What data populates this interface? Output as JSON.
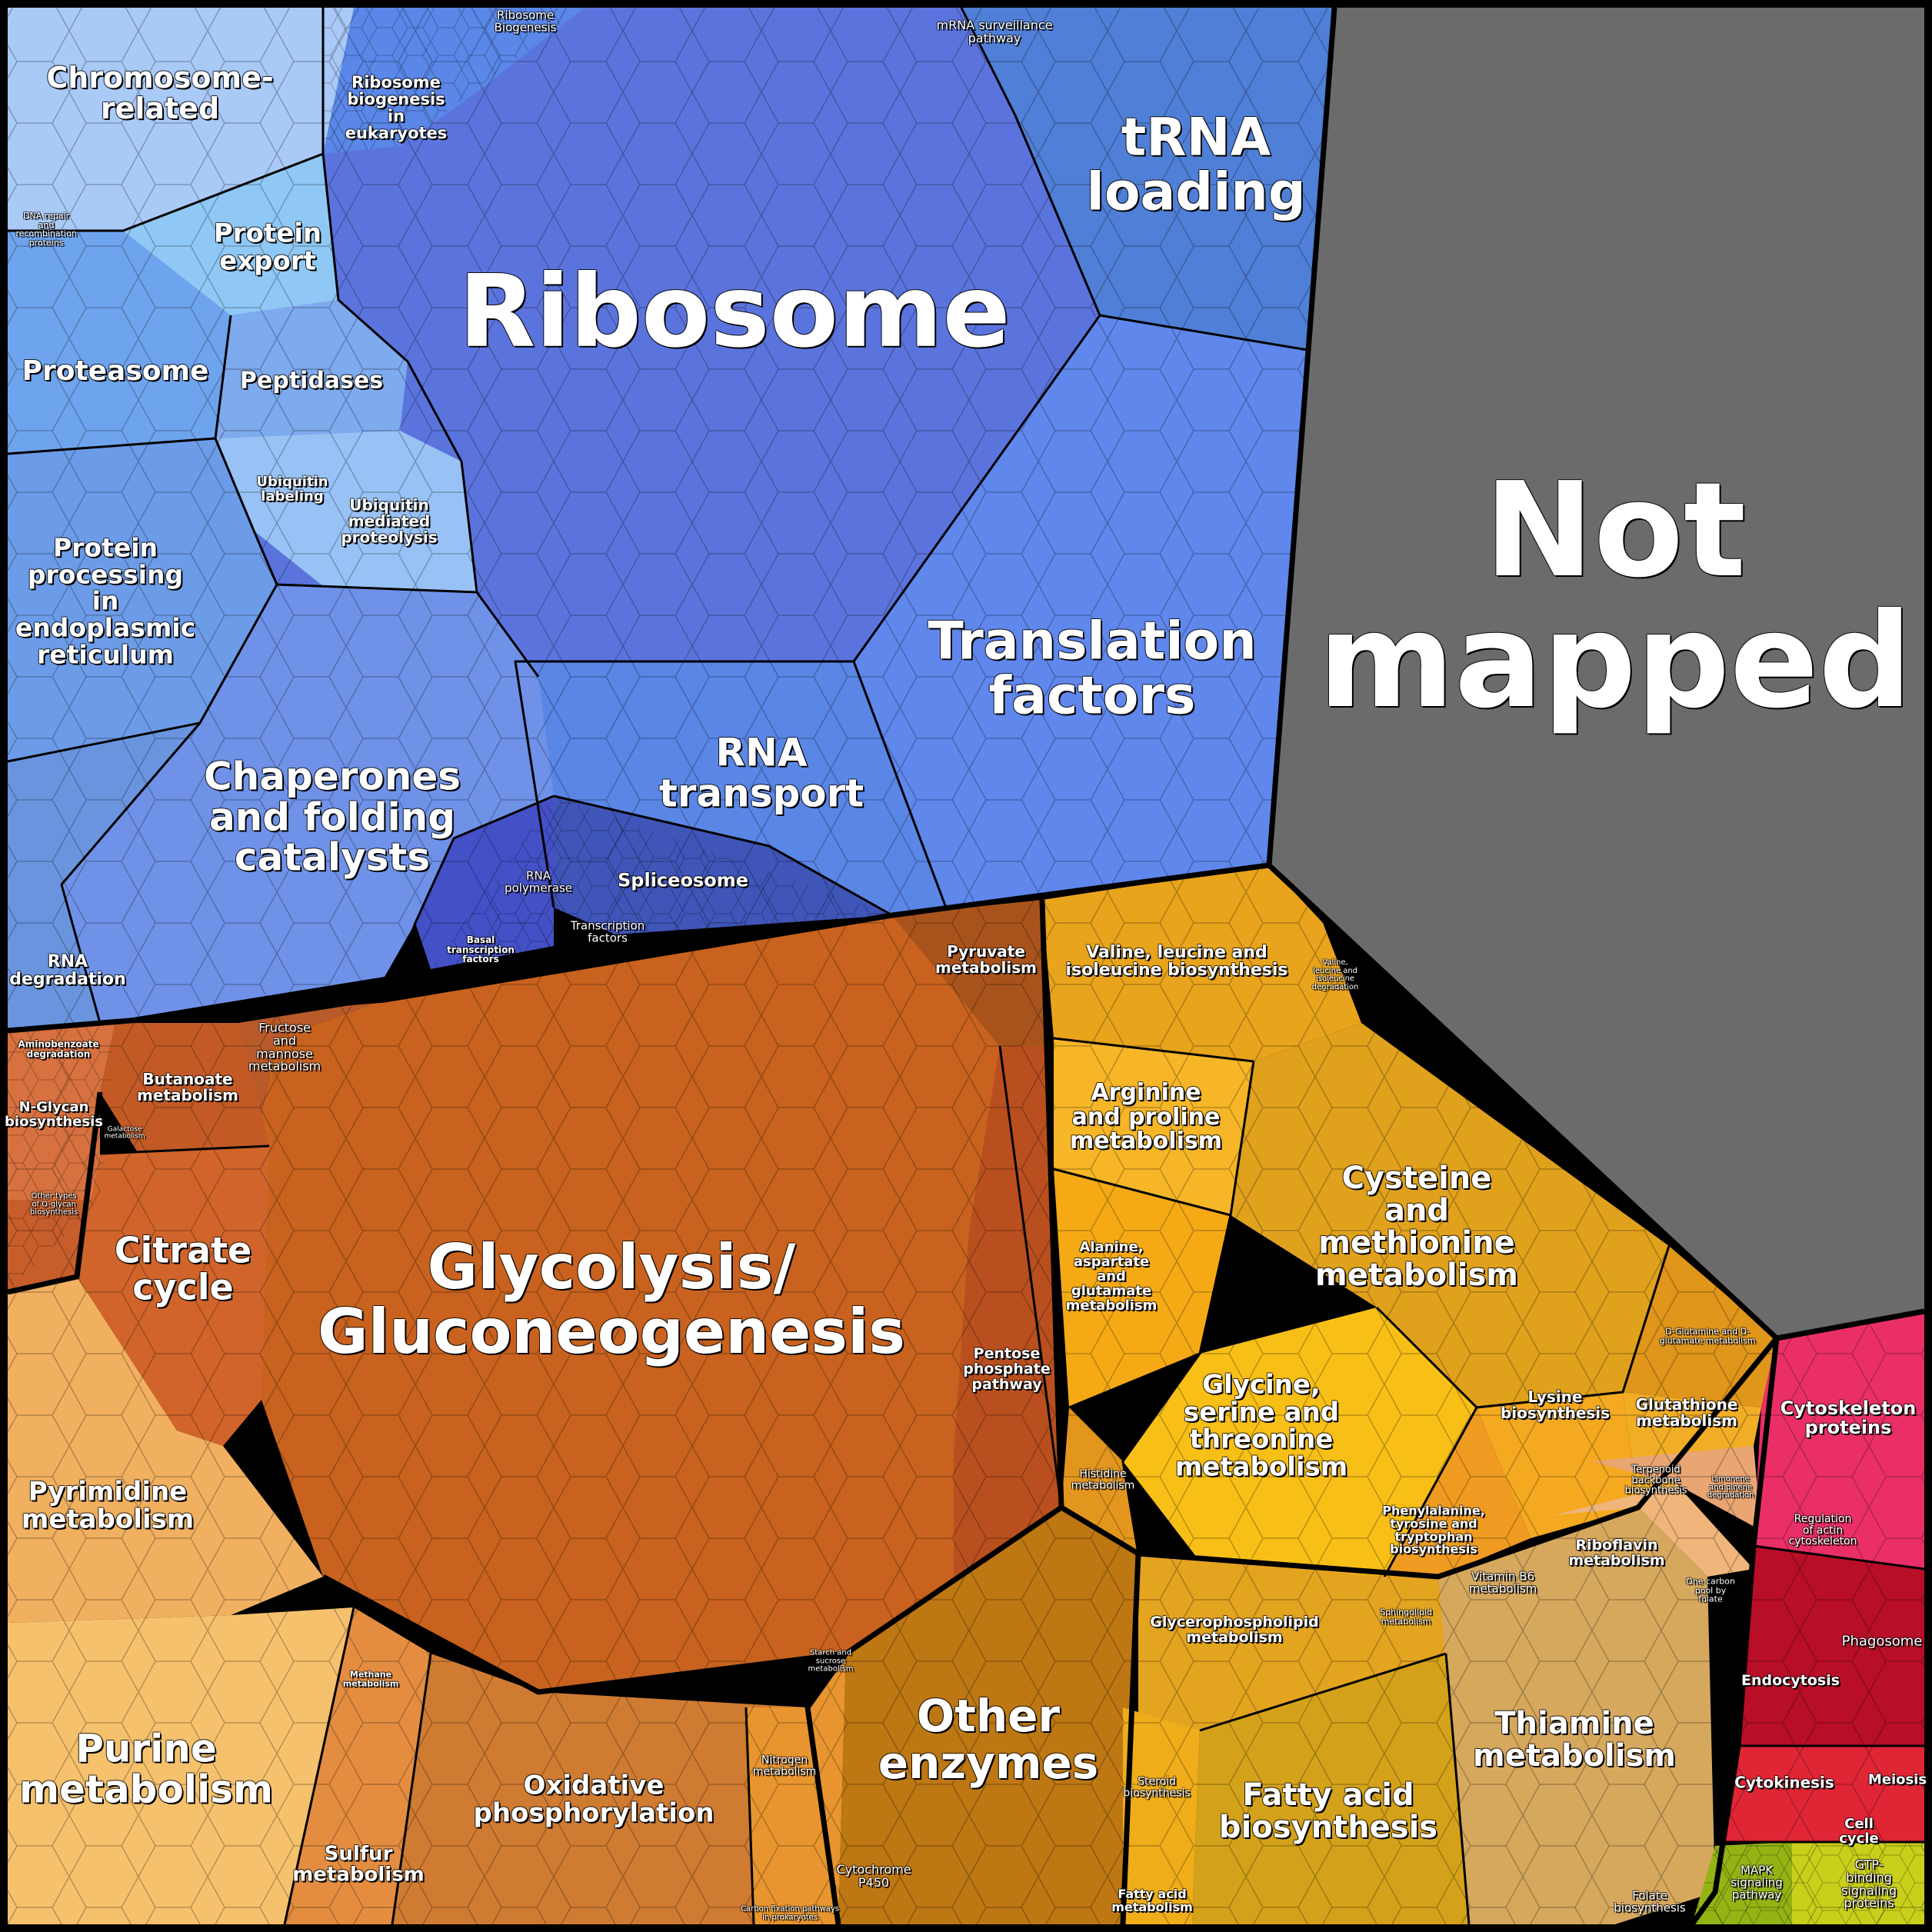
{
  "colors": {
    "blue": "#5b7be0",
    "lightblue": "#8fb6f3",
    "orange": "#c8611f",
    "amber": "#f1a51e",
    "peach": "#f4b86a",
    "gray": "#6b6b6b",
    "pink": "#ea2f66",
    "red": "#c8102e",
    "lime": "#a7c21b"
  },
  "labels": [
    {
      "id": "ribosome",
      "text": "Ribosome"
    },
    {
      "id": "not-mapped",
      "text": "Not\nmapped"
    },
    {
      "id": "trna",
      "text": "tRNA\nloading"
    },
    {
      "id": "translation",
      "text": "Translation\nfactors"
    },
    {
      "id": "rna-transport",
      "text": "RNA\ntransport"
    },
    {
      "id": "spliceosome",
      "text": "Spliceosome"
    },
    {
      "id": "rna-pol",
      "text": "RNA\npolymerase"
    },
    {
      "id": "transcription",
      "text": "Transcription\nfactors"
    },
    {
      "id": "basal",
      "text": "Basal\ntranscription\nfactors"
    },
    {
      "id": "chromosome",
      "text": "Chromosome-\nrelated"
    },
    {
      "id": "ribo-bio-euk",
      "text": "Ribosome\nbiogenesis\nin\neukaryotes"
    },
    {
      "id": "ribo-bio",
      "text": "Ribosome\nBiogenesis"
    },
    {
      "id": "mrna",
      "text": "mRNA surveillance\npathway"
    },
    {
      "id": "dna-repair",
      "text": "DNA repair\nand\nrecombination\nproteins"
    },
    {
      "id": "protein-export",
      "text": "Protein\nexport"
    },
    {
      "id": "proteasome",
      "text": "Proteasome"
    },
    {
      "id": "peptidases",
      "text": "Peptidases"
    },
    {
      "id": "ubiq-label",
      "text": "Ubiquitin\nlabeling"
    },
    {
      "id": "ubiq-prot",
      "text": "Ubiquitin\nmediated\nproteolysis"
    },
    {
      "id": "protein-er",
      "text": "Protein\nprocessing\nin\nendoplasmic\nreticulum"
    },
    {
      "id": "chaperones",
      "text": "Chaperones\nand folding\ncatalysts"
    },
    {
      "id": "rna-deg",
      "text": "RNA\ndegradation"
    },
    {
      "id": "glycolysis",
      "text": "Glycolysis/\nGluconeogenesis"
    },
    {
      "id": "pyruvate",
      "text": "Pyruvate\nmetabolism"
    },
    {
      "id": "pentose",
      "text": "Pentose\nphosphate\npathway"
    },
    {
      "id": "fructose",
      "text": "Fructose\nand\nmannose\nmetabolism"
    },
    {
      "id": "butanoate",
      "text": "Butanoate\nmetabolism"
    },
    {
      "id": "aminobenzoate",
      "text": "Aminobenzoate\ndegradation"
    },
    {
      "id": "nglycan",
      "text": "N-Glycan\nbiosynthesis"
    },
    {
      "id": "galactose",
      "text": "Galactose\nmetabolism"
    },
    {
      "id": "oglycan",
      "text": "Other types\nof O-glycan\nbiosynthesis"
    },
    {
      "id": "citrate",
      "text": "Citrate\ncycle"
    },
    {
      "id": "pyrimidine",
      "text": "Pyrimidine\nmetabolism"
    },
    {
      "id": "purine",
      "text": "Purine\nmetabolism"
    },
    {
      "id": "methane",
      "text": "Methane\nmetabolism"
    },
    {
      "id": "sulfur",
      "text": "Sulfur\nmetabolism"
    },
    {
      "id": "oxphos",
      "text": "Oxidative\nphosphorylation"
    },
    {
      "id": "nitrogen",
      "text": "Nitrogen\nmetabolism"
    },
    {
      "id": "carbon-fix",
      "text": "Carbon fixation pathways\nin prokaryotes"
    },
    {
      "id": "starch",
      "text": "Starch and\nsucrose\nmetabolism"
    },
    {
      "id": "other-enz",
      "text": "Other\nenzymes"
    },
    {
      "id": "cytp450",
      "text": "Cytochrome\nP450"
    },
    {
      "id": "valine",
      "text": "Valine, leucine and\nisoleucine biosynthesis"
    },
    {
      "id": "valine-deg",
      "text": "Valine,\nleucine and\nisoleucine\ndegradation"
    },
    {
      "id": "arginine",
      "text": "Arginine\nand proline\nmetabolism"
    },
    {
      "id": "cysteine",
      "text": "Cysteine\nand\nmethionine\nmetabolism"
    },
    {
      "id": "alanine",
      "text": "Alanine,\naspartate\nand\nglutamate\nmetabolism"
    },
    {
      "id": "glycine",
      "text": "Glycine,\nserine and\nthreonine\nmetabolism"
    },
    {
      "id": "histidine",
      "text": "Histidine\nmetabolism"
    },
    {
      "id": "phenyl",
      "text": "Phenylalanine,\ntyrosine and\ntryptophan\nbiosynthesis"
    },
    {
      "id": "lysine",
      "text": "Lysine\nbiosynthesis"
    },
    {
      "id": "dglut",
      "text": "D-Glutamine and D-\nglutamate metabolism"
    },
    {
      "id": "glutathione",
      "text": "Glutathione\nmetabolism"
    },
    {
      "id": "terpenoid",
      "text": "Terpenoid\nbackbone\nbiosynthesis"
    },
    {
      "id": "limonene",
      "text": "Limonene\nand pinene\ndegradation"
    },
    {
      "id": "glycerophospho",
      "text": "Glycerophospholipid\nmetabolism"
    },
    {
      "id": "sphingolipid",
      "text": "Sphingolipid\nmetabolism"
    },
    {
      "id": "steroid",
      "text": "Steroid\nbiosynthesis"
    },
    {
      "id": "fatty-acid-bio",
      "text": "Fatty acid\nbiosynthesis"
    },
    {
      "id": "fatty-acid-met",
      "text": "Fatty acid\nmetabolism"
    },
    {
      "id": "vitb6",
      "text": "Vitamin B6\nmetabolism"
    },
    {
      "id": "riboflavin",
      "text": "Riboflavin\nmetabolism"
    },
    {
      "id": "one-carbon",
      "text": "One carbon\npool by\nfolate"
    },
    {
      "id": "thiamine",
      "text": "Thiamine\nmetabolism"
    },
    {
      "id": "folate",
      "text": "Folate\nbiosynthesis"
    },
    {
      "id": "cytoskeleton",
      "text": "Cytoskeleton\nproteins"
    },
    {
      "id": "reg-actin",
      "text": "Regulation\nof actin\ncytoskeleton"
    },
    {
      "id": "phagosome",
      "text": "Phagosome"
    },
    {
      "id": "endocytosis",
      "text": "Endocytosis"
    },
    {
      "id": "cytokinesis",
      "text": "Cytokinesis"
    },
    {
      "id": "meiosis",
      "text": "Meiosis"
    },
    {
      "id": "cell-cycle",
      "text": "Cell cycle"
    },
    {
      "id": "mapk",
      "text": "MAPK\nsignaling\npathway"
    },
    {
      "id": "gtp",
      "text": "GTP-binding\nsignaling proteins"
    }
  ]
}
